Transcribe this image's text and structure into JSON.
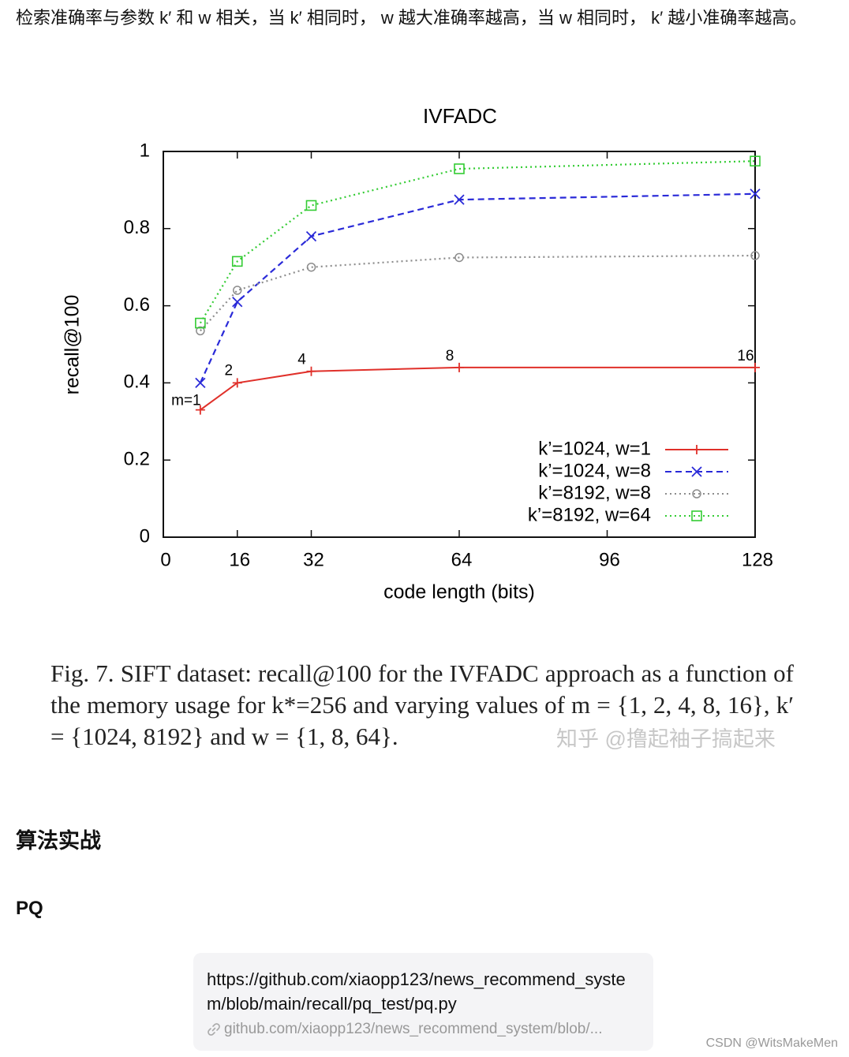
{
  "paragraph": "检索准确率与参数 k′ 和 w 相关，当 k′ 相同时， w 越大准确率越高，当 w 相同时， k′ 越小准确率越高。",
  "chart_data": {
    "type": "line",
    "title": "IVFADC",
    "x_label": "code length (bits)",
    "y_label": "recall@100",
    "x": [
      8,
      16,
      32,
      64,
      128
    ],
    "xlim": [
      0,
      128
    ],
    "xticks": [
      0,
      16,
      32,
      64,
      96,
      128
    ],
    "ylim": [
      0,
      1
    ],
    "yticks": [
      0,
      0.2,
      0.4,
      0.6,
      0.8,
      1
    ],
    "grid": false,
    "legend": "lower right",
    "series": [
      {
        "name": "k’=1024, w=1",
        "color": "#e0302a",
        "dash": "solid",
        "marker": "plus",
        "values": [
          0.33,
          0.4,
          0.43,
          0.44,
          0.44
        ]
      },
      {
        "name": "k’=1024, w=8",
        "color": "#2a2ad8",
        "dash": "dashed",
        "marker": "x",
        "values": [
          0.4,
          0.61,
          0.78,
          0.875,
          0.89
        ]
      },
      {
        "name": "k’=8192, w=8",
        "color": "#8c8c8c",
        "dash": "dotted",
        "marker": "circle",
        "values": [
          0.535,
          0.64,
          0.7,
          0.725,
          0.73
        ]
      },
      {
        "name": "k’=8192, w=64",
        "color": "#33cc33",
        "dash": "dotted",
        "marker": "square",
        "values": [
          0.555,
          0.715,
          0.86,
          0.955,
          0.975
        ]
      }
    ],
    "annotations": [
      "m=1",
      "2",
      "4",
      "8",
      "16"
    ]
  },
  "caption": "Fig. 7.   SIFT dataset: recall@100 for the IVFADC approach as a function of the memory usage for k*=256 and varying values of m = {1, 2, 4, 8, 16}, k′ = {1024, 8192} and w = {1, 8, 64}.",
  "caption_watermark": "知乎 @撸起袖子搞起来",
  "heading": "算法实战",
  "subheading": "PQ",
  "link_card": {
    "title": "https://github.com/xiaopp123/news_recommend_system/blob/main/recall/pq_test/pq.py",
    "url": "github.com/xiaopp123/news_recommend_system/blob/..."
  },
  "footer": "CSDN @WitsMakeMen"
}
